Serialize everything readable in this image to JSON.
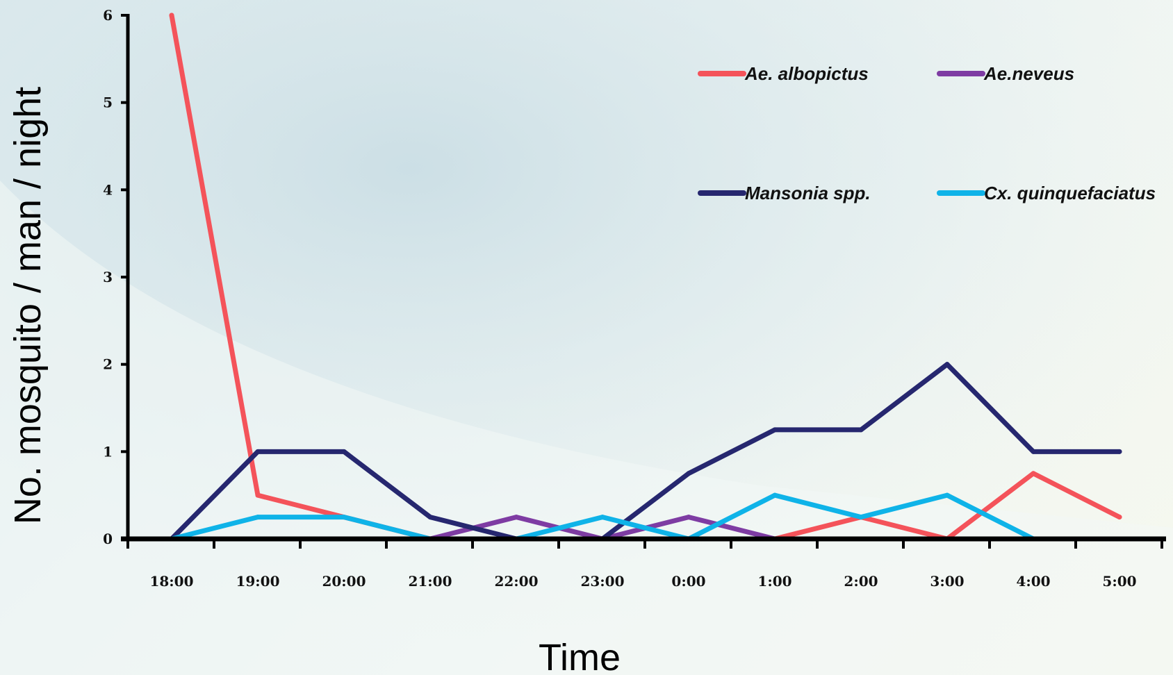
{
  "chart_data": {
    "type": "line",
    "title": "",
    "xlabel": "Time",
    "ylabel": "No. mosquito / man / night",
    "categories": [
      "18:00",
      "19:00",
      "20:00",
      "21:00",
      "22:00",
      "23:00",
      "0:00",
      "1:00",
      "2:00",
      "3:00",
      "4:00",
      "5:00"
    ],
    "ylim": [
      0,
      6
    ],
    "yticks": [
      "0",
      "1",
      "2",
      "3",
      "4",
      "5",
      "6"
    ],
    "grid": false,
    "legend_position": "top-right",
    "series": [
      {
        "name": "Ae. albopictus",
        "color": "#f4535a",
        "values": [
          6,
          0.5,
          0.25,
          0,
          0,
          0,
          0,
          0,
          0.25,
          0,
          0.75,
          0.25
        ]
      },
      {
        "name": "Ae.neveus",
        "color": "#7e3ca3",
        "values": [
          0,
          0,
          0,
          0,
          0.25,
          0,
          0.25,
          0,
          0,
          0,
          0,
          0
        ]
      },
      {
        "name": "Mansonia spp.",
        "color": "#26276f",
        "values": [
          0,
          1,
          1,
          0.25,
          0,
          0,
          0.75,
          1.25,
          1.25,
          2,
          1,
          1
        ]
      },
      {
        "name": "Cx. quinquefaciatus",
        "color": "#0fb3e8",
        "values": [
          0,
          0.25,
          0.25,
          0,
          0,
          0.25,
          0,
          0.5,
          0.25,
          0.5,
          0,
          0
        ]
      }
    ]
  }
}
